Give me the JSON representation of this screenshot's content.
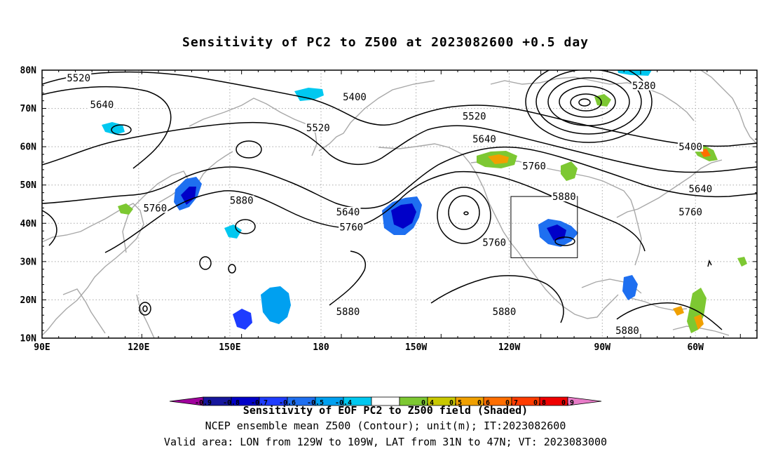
{
  "title": "Sensitivity of PC2 to Z500 at 2023082600 +0.5 day",
  "map": {
    "lon_labels": [
      "90E",
      "120E",
      "150E",
      "180",
      "150W",
      "120W",
      "90W",
      "60W"
    ],
    "lat_labels": [
      "80N",
      "70N",
      "60N",
      "50N",
      "40N",
      "30N",
      "20N",
      "10N"
    ],
    "contour_labels": [
      {
        "text": "5520",
        "lon": 101,
        "lat": 78
      },
      {
        "text": "5640",
        "lon": 108,
        "lat": 71
      },
      {
        "text": "5520",
        "lon": 173,
        "lat": 65
      },
      {
        "text": "5400",
        "lon": 184,
        "lat": 73
      },
      {
        "text": "5520",
        "lon": -140,
        "lat": 68
      },
      {
        "text": "5640",
        "lon": -137,
        "lat": 62
      },
      {
        "text": "5760",
        "lon": -122,
        "lat": 55
      },
      {
        "text": "5280",
        "lon": -89,
        "lat": 76
      },
      {
        "text": "5400",
        "lon": -75,
        "lat": 60
      },
      {
        "text": "5640",
        "lon": -72,
        "lat": 49
      },
      {
        "text": "5760",
        "lon": -75,
        "lat": 43
      },
      {
        "text": "5880",
        "lon": -113,
        "lat": 47
      },
      {
        "text": "5760",
        "lon": 124,
        "lat": 44
      },
      {
        "text": "5880",
        "lon": 150,
        "lat": 46
      },
      {
        "text": "5640",
        "lon": -178,
        "lat": 43
      },
      {
        "text": "5760",
        "lon": 183,
        "lat": 39
      },
      {
        "text": "5760",
        "lon": -134,
        "lat": 35
      },
      {
        "text": "5880",
        "lon": 182,
        "lat": 17
      },
      {
        "text": "5880",
        "lon": -131,
        "lat": 17
      },
      {
        "text": "5880",
        "lon": -94,
        "lat": 12
      }
    ],
    "valid_box": {
      "lon_min": -129,
      "lon_max": -109,
      "lat_min": 31,
      "lat_max": 47
    }
  },
  "colorbar": {
    "labels": [
      "-0.9",
      "-0.8",
      "-0.7",
      "-0.6",
      "-0.5",
      "-0.4",
      "0.4",
      "0.5",
      "0.6",
      "0.7",
      "0.8",
      "0.9"
    ],
    "colors": [
      "#a0009c",
      "#16169c",
      "#0000c8",
      "#1e3cff",
      "#1e6ff0",
      "#00a0f0",
      "#00c8f0",
      "#ffffff",
      "#7dc832",
      "#c8c800",
      "#f0a000",
      "#ff6e00",
      "#ff3c00",
      "#f00000",
      "#e87cc8"
    ]
  },
  "footer": {
    "line1": "Sensitivity of EOF PC2 to Z500 field (Shaded)",
    "line2": "NCEP ensemble mean Z500 (Contour); unit(m); IT:2023082600",
    "line3": "Valid area: LON from 129W to 109W, LAT from 31N to 47N; VT: 2023083000"
  }
}
